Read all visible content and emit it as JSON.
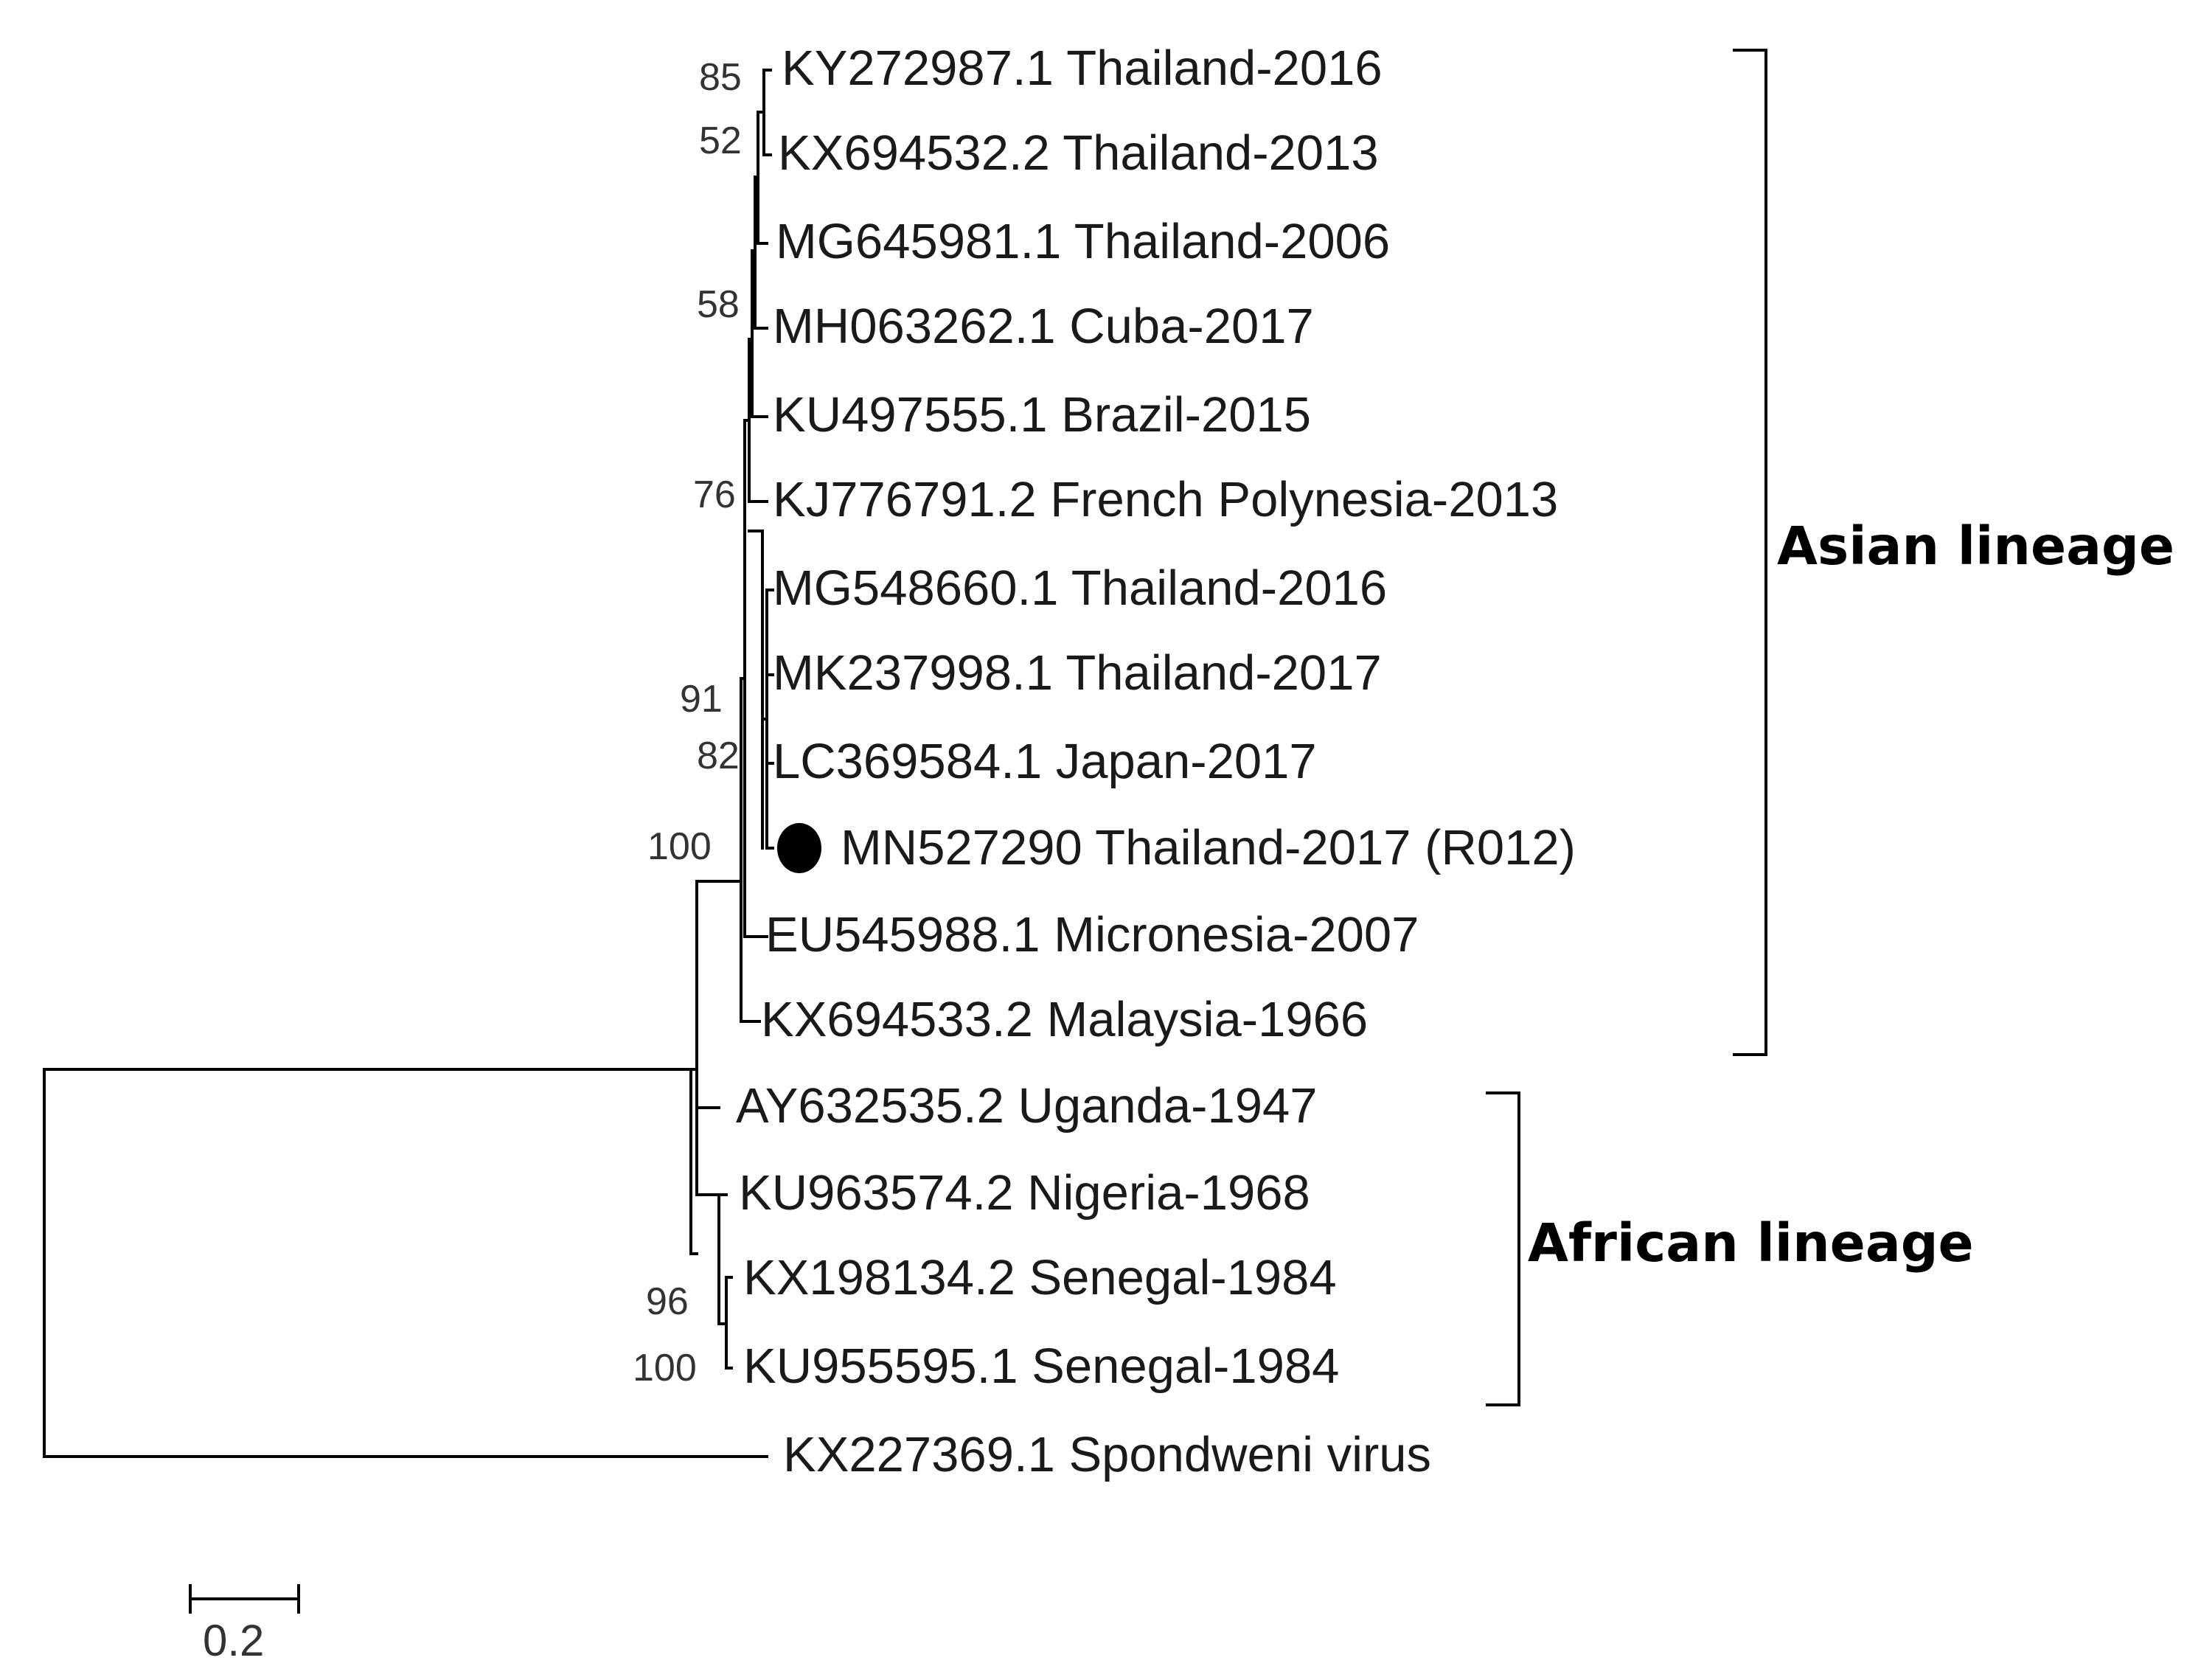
{
  "taxa": [
    {
      "label": "KY272987.1 Thailand-2016"
    },
    {
      "label": "KX694532.2 Thailand-2013"
    },
    {
      "label": "MG645981.1 Thailand-2006"
    },
    {
      "label": "MH063262.1 Cuba-2017"
    },
    {
      "label": "KU497555.1 Brazil-2015"
    },
    {
      "label": "KJ776791.2 French Polynesia-2013"
    },
    {
      "label": "MG548660.1 Thailand-2016"
    },
    {
      "label": "MK237998.1 Thailand-2017"
    },
    {
      "label": "LC369584.1 Japan-2017"
    },
    {
      "label": "MN527290 Thailand-2017 (R012)",
      "highlighted": true
    },
    {
      "label": "EU545988.1 Micronesia-2007"
    },
    {
      "label": "KX694533.2 Malaysia-1966"
    },
    {
      "label": "AY632535.2 Uganda-1947"
    },
    {
      "label": "KU963574.2 Nigeria-1968"
    },
    {
      "label": "KX198134.2 Senegal-1984"
    },
    {
      "label": "KU955595.1 Senegal-1984"
    },
    {
      "label": "KX227369.1 Spondweni virus"
    }
  ],
  "bootstrap": [
    "85",
    "52",
    "58",
    "76",
    "91",
    "82",
    "100",
    "96",
    "100"
  ],
  "clades": {
    "asian": "Asian lineage",
    "african": "African lineage"
  },
  "scale_bar": {
    "label": "0.2",
    "value": 0.2
  },
  "colors": {
    "line": "#000000",
    "text": "#1a1a1a",
    "highlight_marker": "#000000"
  }
}
